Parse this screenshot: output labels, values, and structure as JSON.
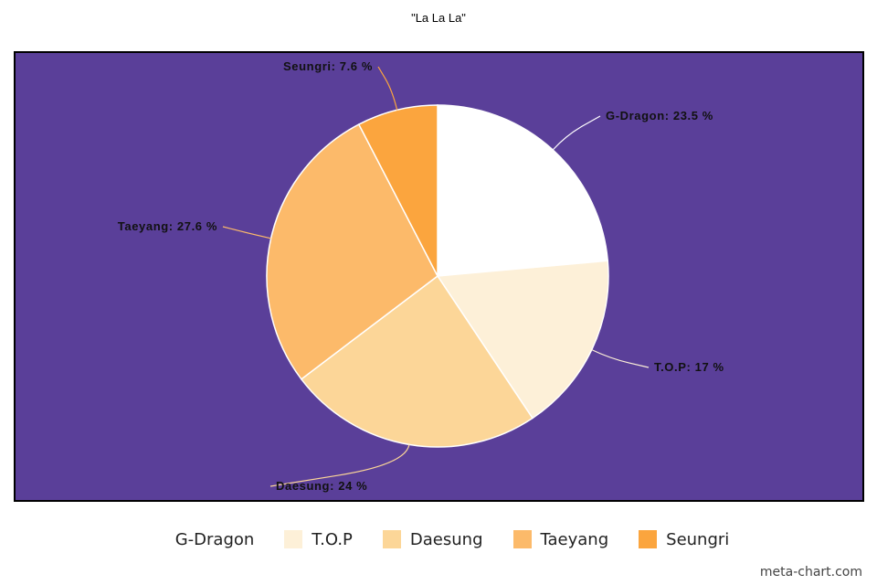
{
  "chart_data": {
    "type": "pie",
    "title": "\"La La La\"",
    "background_color": "#5a3f99",
    "slices": [
      {
        "label": "G-Dragon",
        "value": 23.5,
        "color": "#ffffff"
      },
      {
        "label": "T.O.P",
        "value": 17,
        "color": "#fdf0d8"
      },
      {
        "label": "Daesung",
        "value": 24,
        "color": "#fcd698"
      },
      {
        "label": "Taeyang",
        "value": 27.6,
        "color": "#fcba6a"
      },
      {
        "label": "Seungri",
        "value": 7.6,
        "color": "#fba53e"
      }
    ],
    "data_labels": [
      "G-Dragon: 23.5 %",
      "T.O.P: 17 %",
      "Daesung: 24 %",
      "Taeyang: 27.6 %",
      "Seungri: 7.6 %"
    ],
    "legend_position": "bottom"
  },
  "watermark": "meta-chart.com"
}
